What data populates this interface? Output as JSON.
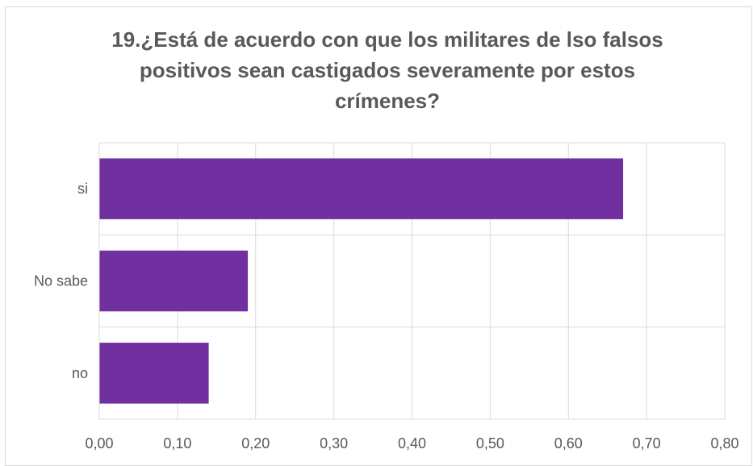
{
  "chart_data": {
    "type": "bar",
    "orientation": "horizontal",
    "title": "19.¿Está de acuerdo con que los militares de lso falsos positivos sean castigados severamente por estos crímenes?",
    "categories": [
      "si",
      "No sabe",
      "no"
    ],
    "values": [
      0.67,
      0.19,
      0.14
    ],
    "xlabel": "",
    "ylabel": "",
    "xlim": [
      0,
      0.8
    ],
    "x_ticks": [
      "0,00",
      "0,10",
      "0,20",
      "0,30",
      "0,40",
      "0,50",
      "0,60",
      "0,70",
      "0,80"
    ],
    "grid": true,
    "legend": "none",
    "bar_color": "#7030A0",
    "grid_color": "#d9d9d9",
    "text_color": "#595959"
  }
}
